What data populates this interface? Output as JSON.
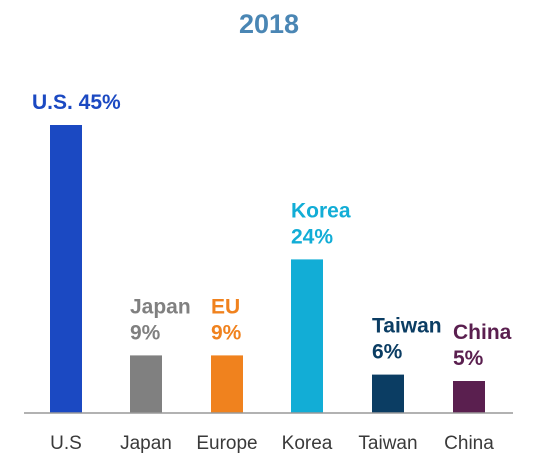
{
  "chart_data": {
    "type": "bar",
    "title": "2018",
    "xlabel": "",
    "ylabel": "",
    "ylim": [
      0,
      50
    ],
    "grid": false,
    "legend": "none",
    "categories": [
      "U.S",
      "Japan",
      "Europe",
      "Korea",
      "Taiwan",
      "China"
    ],
    "values": [
      45,
      9,
      9,
      24,
      6,
      5
    ],
    "bar_labels": [
      [
        "U.S. 45%"
      ],
      [
        "Japan",
        "9%"
      ],
      [
        "EU",
        "9%"
      ],
      [
        "Korea",
        "24%"
      ],
      [
        "Taiwan",
        "6%"
      ],
      [
        "China",
        "5%"
      ]
    ],
    "colors": {
      "title": "#4a86b4",
      "axis": "#999999",
      "bars": [
        "#1b49c2",
        "#808080",
        "#f0821e",
        "#12add6",
        "#0b3d63",
        "#5a1f4f"
      ],
      "labels": [
        "#1b49c2",
        "#808080",
        "#f0821e",
        "#12add6",
        "#0b3d63",
        "#5a1f4f"
      ]
    }
  }
}
